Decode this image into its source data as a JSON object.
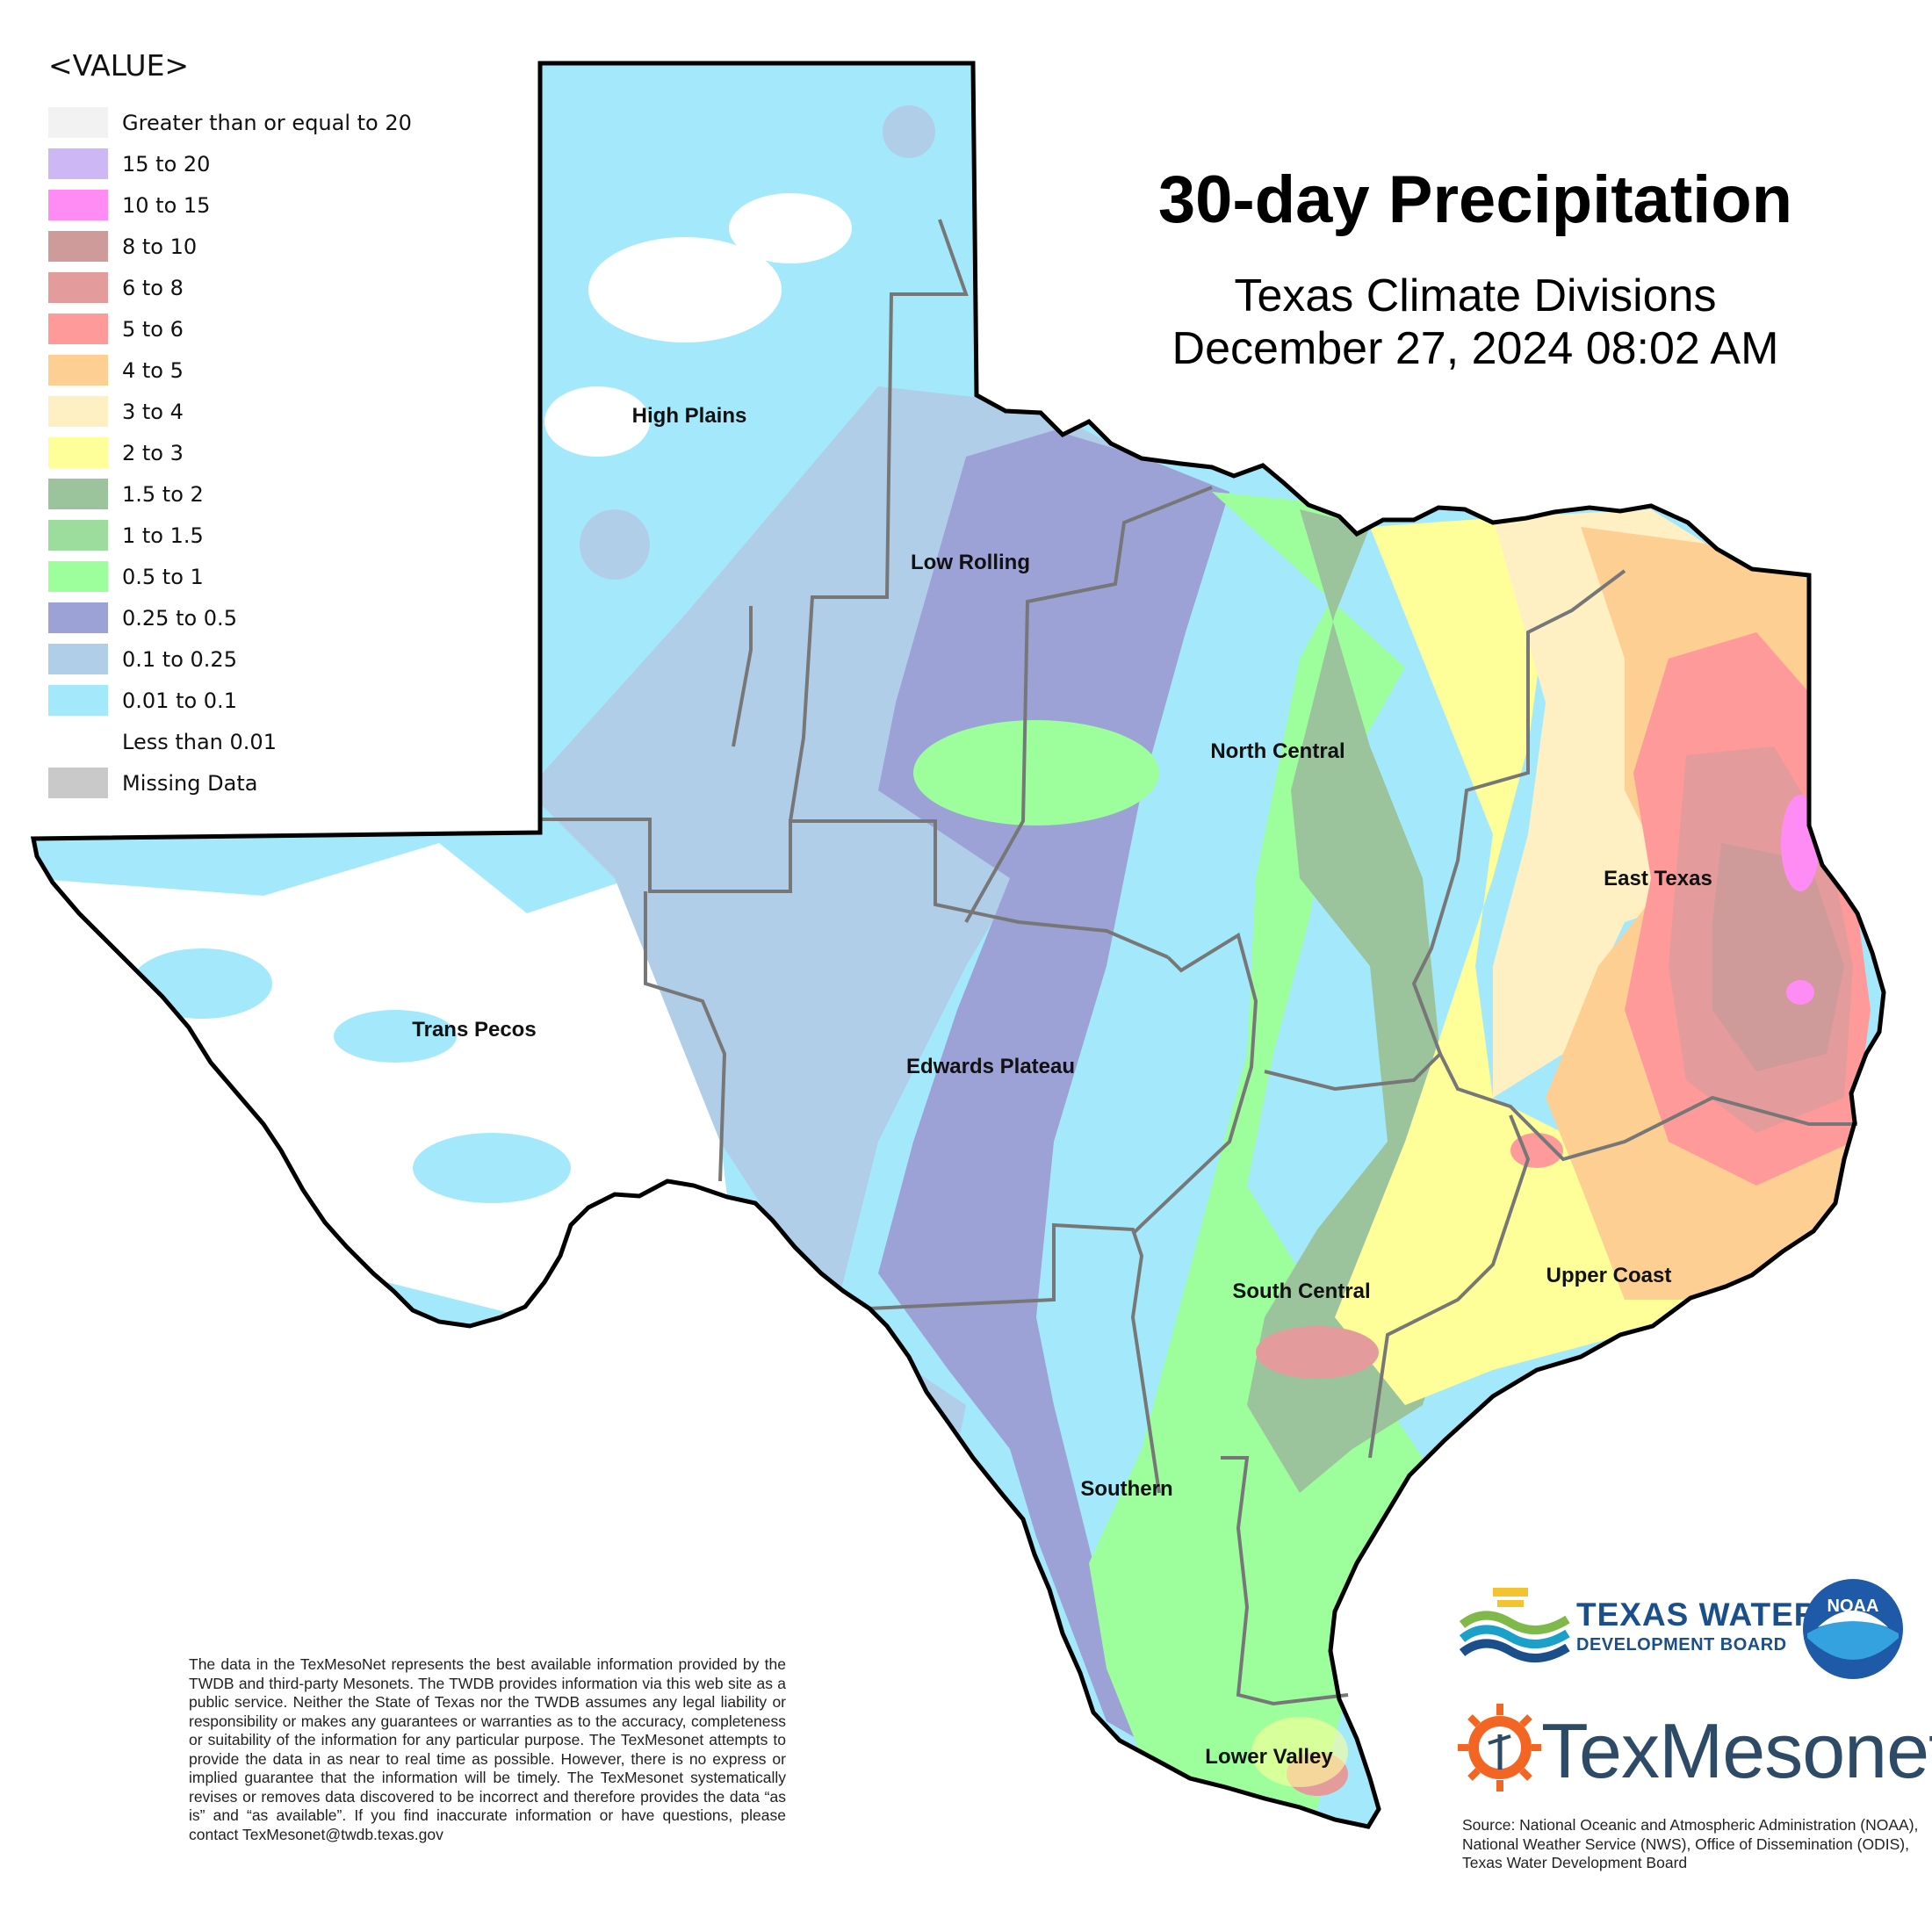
{
  "legend": {
    "title": "<VALUE>",
    "items": [
      {
        "label": "Greater than or equal to 20",
        "color": "#f2f2f2"
      },
      {
        "label": "15 to 20",
        "color": "#cdb8f5"
      },
      {
        "label": "10 to 15",
        "color": "#ff8cf5"
      },
      {
        "label": "8 to 10",
        "color": "#cf9a9a"
      },
      {
        "label": "6 to 8",
        "color": "#e39b9b"
      },
      {
        "label": "5 to 6",
        "color": "#ff9a9a"
      },
      {
        "label": "4 to 5",
        "color": "#fdcf92"
      },
      {
        "label": "3 to 4",
        "color": "#fff0c4"
      },
      {
        "label": "2 to 3",
        "color": "#ffff9a"
      },
      {
        "label": "1.5 to 2",
        "color": "#9cc49c"
      },
      {
        "label": "1 to 1.5",
        "color": "#9cdc9c"
      },
      {
        "label": "0.5 to 1",
        "color": "#9cff9c"
      },
      {
        "label": "0.25 to 0.5",
        "color": "#9ca2d6"
      },
      {
        "label": "0.1 to 0.25",
        "color": "#b1cee9"
      },
      {
        "label": "0.01 to 0.1",
        "color": "#a3e9fb"
      },
      {
        "label": "Less than 0.01",
        "color": "#ffffff"
      },
      {
        "label": "Missing Data",
        "color": "#c9c9c9"
      }
    ]
  },
  "header": {
    "title": "30-day Precipitation",
    "subtitle": "Texas Climate Divisions",
    "date": "December 27, 2024 08:02 AM"
  },
  "divisions": {
    "high_plains": "High Plains",
    "low_rolling": "Low Rolling",
    "north_central": "North Central",
    "east_texas": "East Texas",
    "trans_pecos": "Trans Pecos",
    "edwards_plateau": "Edwards Plateau",
    "south_central": "South Central",
    "upper_coast": "Upper Coast",
    "southern": "Southern",
    "lower_valley": "Lower Valley"
  },
  "disclaimer": "The data in the TexMesoNet represents the best available information provided by the TWDB and third-party Mesonets. The TWDB provides information via this web site as a public service. Neither the State of Texas nor the TWDB assumes any legal liability or responsibility or makes any guarantees or warranties as to the accuracy, completeness or suitability of the information for any particular purpose. The TexMesonet attempts to provide the data in as near to real time as possible. However, there is no express or implied guarantee that the information will be timely. The TexMesonet systematically revises or removes data discovered to be incorrect and therefore provides the data “as is” and “as available”. If you find inaccurate information or have questions, please contact TexMesonet@twdb.texas.gov",
  "source": "Source: National Oceanic and Atmospheric Administration (NOAA), National Weather Service (NWS), Office of Dissemination (ODIS), Texas Water Development Board",
  "logos": {
    "twdb_line1": "TEXAS WATER",
    "twdb_line2": "DEVELOPMENT BOARD",
    "noaa": "NOAA",
    "texmesonet": "TexMesonet"
  }
}
